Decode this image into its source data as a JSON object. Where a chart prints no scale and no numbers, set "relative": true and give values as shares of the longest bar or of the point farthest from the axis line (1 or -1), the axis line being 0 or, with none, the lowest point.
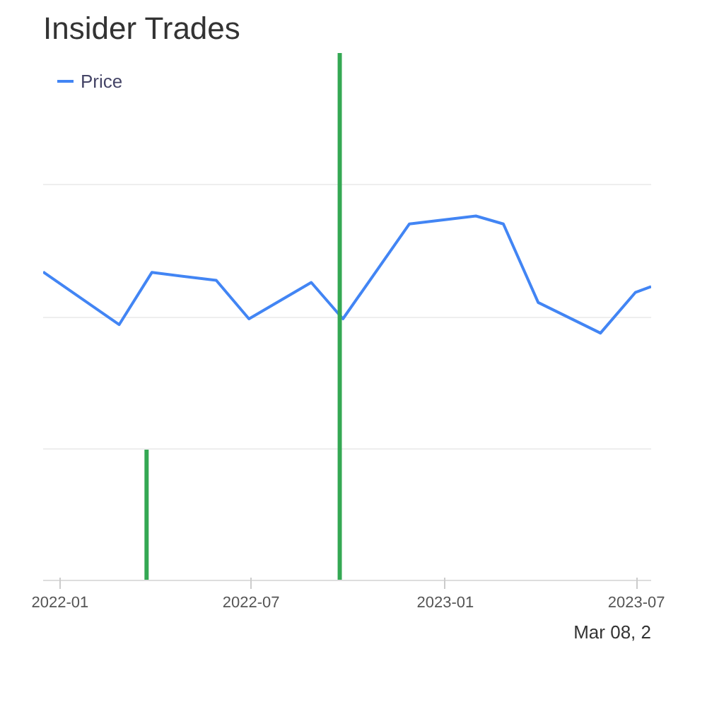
{
  "chart_data": {
    "type": "line",
    "title": "Insider Trades",
    "relative": true,
    "grid": "y",
    "legend": "top left",
    "marker": "none",
    "xticks": [
      {
        "value": "2022-01",
        "label": "2022-01"
      },
      {
        "value": "2022-07",
        "label": "2022-07"
      },
      {
        "value": "2023-01",
        "label": "2023-01"
      },
      {
        "value": "2023-07",
        "label": "2023-07"
      }
    ],
    "xlim": [
      "2021-12-16",
      "2023-07-15"
    ],
    "series": [
      {
        "name": "Price",
        "color": "#4285f4",
        "x": [
          "2021-12-16",
          "2022-02-26",
          "2022-03-29",
          "2022-05-29",
          "2022-06-29",
          "2022-08-27",
          "2022-09-26",
          "2022-11-28",
          "2023-01-30",
          "2023-02-25",
          "2023-03-30",
          "2023-05-28",
          "2023-06-30",
          "2023-07-15"
        ],
        "values": [
          0.585,
          0.485,
          0.584,
          0.569,
          0.496,
          0.565,
          0.496,
          0.676,
          0.691,
          0.676,
          0.527,
          0.469,
          0.546,
          0.557
        ]
      },
      {
        "type": "bar",
        "color": "#34a853",
        "x": [
          "2022-03-24",
          "2022-09-23"
        ],
        "values": [
          0.248,
          1
        ]
      }
    ],
    "annotations": [
      "Mar 08, 2"
    ]
  }
}
